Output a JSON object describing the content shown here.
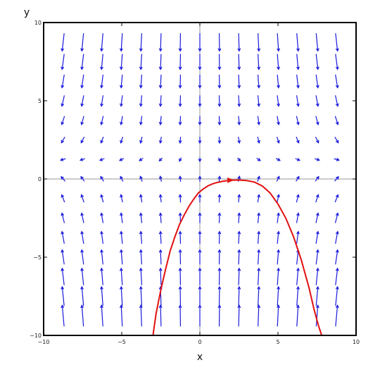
{
  "chart_data": {
    "type": "vector-field",
    "xlabel": "x",
    "ylabel": "y",
    "xlim": [
      -10,
      10
    ],
    "ylim": [
      -10,
      10
    ],
    "x_ticks": [
      -10,
      -5,
      0,
      5,
      10
    ],
    "y_ticks": [
      -10,
      -5,
      0,
      5,
      10
    ],
    "x_tick_labels": [
      "−10",
      "−5",
      "0",
      "5",
      "10"
    ],
    "y_tick_labels": [
      "−10",
      "−5",
      "0",
      "5",
      "10"
    ],
    "grid": false,
    "field": {
      "color": "#1a1adb",
      "grid_x": [
        -8.75,
        -7.5,
        -6.25,
        -5,
        -3.75,
        -2.5,
        -1.25,
        0,
        1.25,
        2.5,
        3.75,
        5,
        6.25,
        7.5,
        8.75
      ],
      "grid_y": [
        -8.75,
        -7.5,
        -6.25,
        -5,
        -3.75,
        -2.5,
        -1.25,
        0,
        1.25,
        2.5,
        3.75,
        5,
        6.25,
        7.5,
        8.75
      ]
    },
    "curve": {
      "color": "#e01010",
      "x": [
        -3.0,
        -2.8,
        -2.5,
        -2.2,
        -1.9,
        -1.6,
        -1.3,
        -1.0,
        -0.7,
        -0.4,
        -0.1,
        0.2,
        0.5,
        0.8,
        1.0,
        1.5,
        2.0,
        2.5,
        3.0,
        3.5,
        4.0,
        4.5,
        5.0,
        5.5,
        6.0,
        6.5,
        7.0,
        7.3,
        7.6,
        7.8
      ],
      "y": [
        -10.0,
        -8.6,
        -7.1,
        -5.8,
        -4.6,
        -3.7,
        -2.9,
        -2.3,
        -1.75,
        -1.3,
        -0.9,
        -0.65,
        -0.45,
        -0.32,
        -0.25,
        -0.14,
        -0.08,
        -0.07,
        -0.1,
        -0.2,
        -0.45,
        -0.9,
        -1.6,
        -2.5,
        -3.7,
        -5.2,
        -7.0,
        -8.3,
        -9.4,
        -10.0
      ],
      "arrow_at": [
        1.9,
        -0.08
      ]
    }
  }
}
